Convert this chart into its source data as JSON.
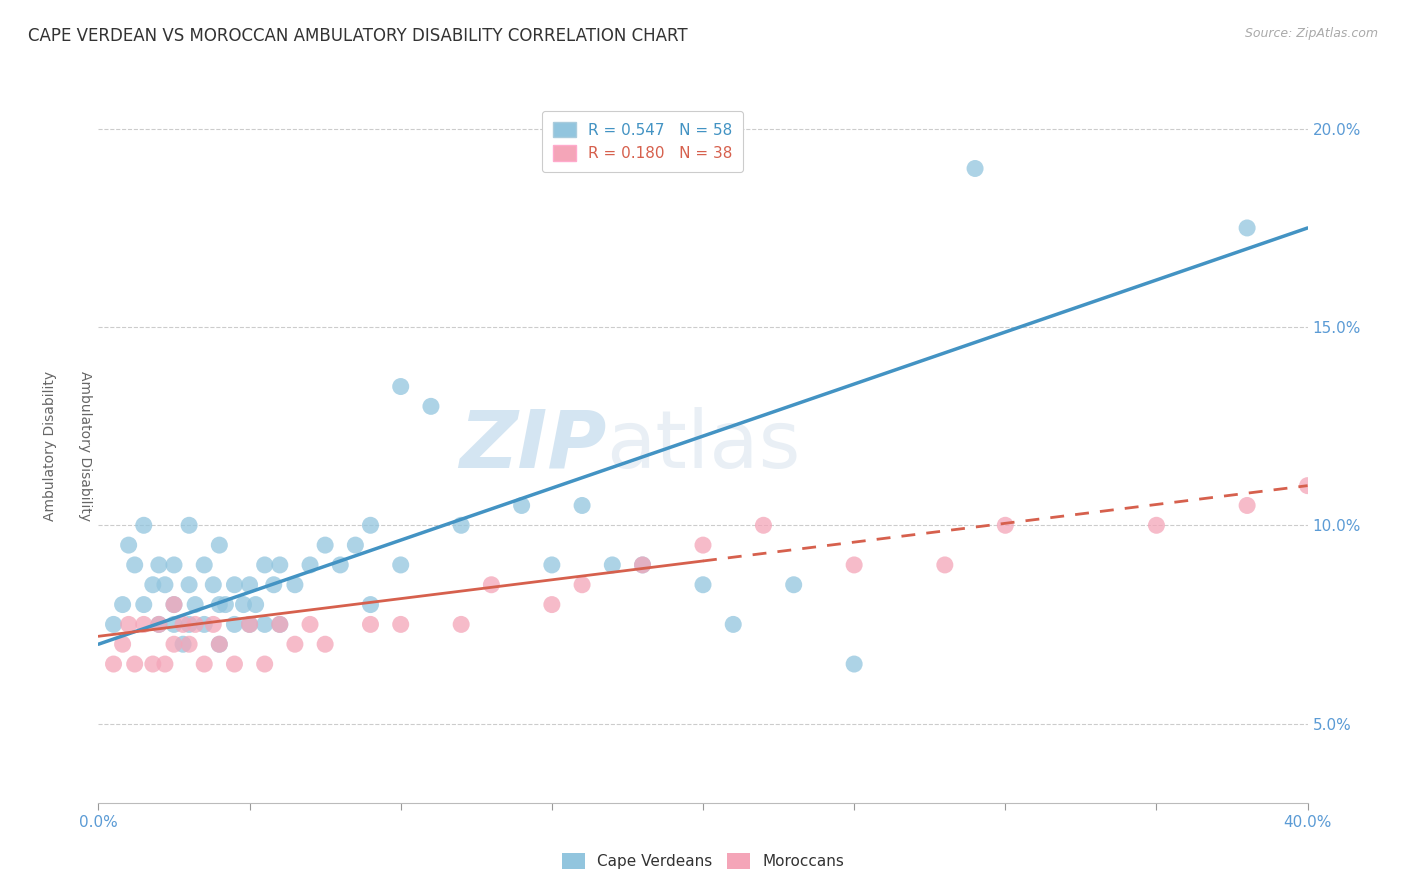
{
  "title": "CAPE VERDEAN VS MOROCCAN AMBULATORY DISABILITY CORRELATION CHART",
  "source": "Source: ZipAtlas.com",
  "ylabel": "Ambulatory Disability",
  "xlim": [
    0.0,
    0.4
  ],
  "ylim": [
    0.03,
    0.21
  ],
  "xticks": [
    0.0,
    0.05,
    0.1,
    0.15,
    0.2,
    0.25,
    0.3,
    0.35,
    0.4
  ],
  "xticklabels_visible": [
    "0.0%",
    "40.0%"
  ],
  "xticklabels_visible_pos": [
    0.0,
    0.4
  ],
  "yticks": [
    0.05,
    0.1,
    0.15,
    0.2
  ],
  "yticklabels": [
    "5.0%",
    "10.0%",
    "15.0%",
    "20.0%"
  ],
  "legend_text_blue": "R = 0.547   N = 58",
  "legend_text_pink": "R = 0.180   N = 38",
  "blue_color": "#92c5de",
  "pink_color": "#f4a5b8",
  "blue_line_color": "#4393c3",
  "pink_line_color": "#d6604d",
  "watermark_zip": "ZIP",
  "watermark_atlas": "atlas",
  "background_color": "#ffffff",
  "grid_color": "#cccccc",
  "tick_color": "#5b9bd5",
  "title_fontsize": 12,
  "axis_label_fontsize": 10,
  "tick_fontsize": 11,
  "legend_fontsize": 11,
  "cape_verdean_x": [
    0.005,
    0.008,
    0.01,
    0.012,
    0.015,
    0.015,
    0.018,
    0.02,
    0.02,
    0.022,
    0.025,
    0.025,
    0.025,
    0.028,
    0.03,
    0.03,
    0.03,
    0.032,
    0.035,
    0.035,
    0.038,
    0.04,
    0.04,
    0.04,
    0.042,
    0.045,
    0.045,
    0.048,
    0.05,
    0.05,
    0.052,
    0.055,
    0.055,
    0.058,
    0.06,
    0.06,
    0.065,
    0.07,
    0.075,
    0.08,
    0.085,
    0.09,
    0.09,
    0.1,
    0.1,
    0.11,
    0.12,
    0.14,
    0.15,
    0.16,
    0.17,
    0.18,
    0.2,
    0.21,
    0.23,
    0.25,
    0.29,
    0.38
  ],
  "cape_verdean_y": [
    0.075,
    0.08,
    0.095,
    0.09,
    0.08,
    0.1,
    0.085,
    0.075,
    0.09,
    0.085,
    0.075,
    0.08,
    0.09,
    0.07,
    0.075,
    0.085,
    0.1,
    0.08,
    0.075,
    0.09,
    0.085,
    0.07,
    0.08,
    0.095,
    0.08,
    0.075,
    0.085,
    0.08,
    0.075,
    0.085,
    0.08,
    0.075,
    0.09,
    0.085,
    0.075,
    0.09,
    0.085,
    0.09,
    0.095,
    0.09,
    0.095,
    0.08,
    0.1,
    0.09,
    0.135,
    0.13,
    0.1,
    0.105,
    0.09,
    0.105,
    0.09,
    0.09,
    0.085,
    0.075,
    0.085,
    0.065,
    0.19,
    0.175
  ],
  "moroccan_x": [
    0.005,
    0.008,
    0.01,
    0.012,
    0.015,
    0.018,
    0.02,
    0.022,
    0.025,
    0.025,
    0.028,
    0.03,
    0.032,
    0.035,
    0.038,
    0.04,
    0.045,
    0.05,
    0.055,
    0.06,
    0.065,
    0.07,
    0.075,
    0.09,
    0.1,
    0.12,
    0.13,
    0.15,
    0.16,
    0.22,
    0.28,
    0.3,
    0.35,
    0.38,
    0.4,
    0.18,
    0.2,
    0.25
  ],
  "moroccan_y": [
    0.065,
    0.07,
    0.075,
    0.065,
    0.075,
    0.065,
    0.075,
    0.065,
    0.07,
    0.08,
    0.075,
    0.07,
    0.075,
    0.065,
    0.075,
    0.07,
    0.065,
    0.075,
    0.065,
    0.075,
    0.07,
    0.075,
    0.07,
    0.075,
    0.075,
    0.075,
    0.085,
    0.08,
    0.085,
    0.1,
    0.09,
    0.1,
    0.1,
    0.105,
    0.11,
    0.09,
    0.095,
    0.09
  ],
  "pink_solid_xlim": [
    0.0,
    0.2
  ],
  "pink_dashed_xlim": [
    0.2,
    0.4
  ],
  "blue_line_start_y": 0.07,
  "blue_line_end_y": 0.175,
  "pink_line_start_y": 0.072,
  "pink_line_end_y": 0.11
}
